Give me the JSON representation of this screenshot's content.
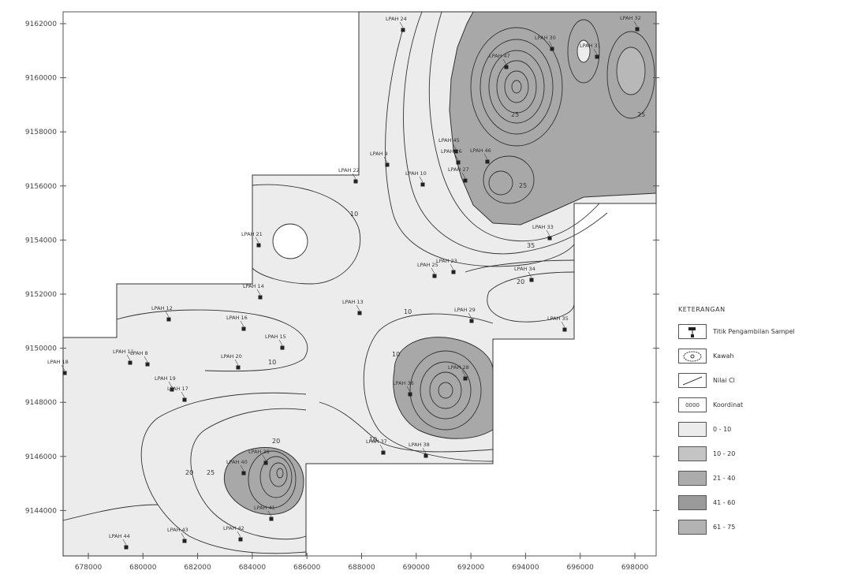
{
  "y_axis_labels": [
    "9162000",
    "9160000",
    "9158000",
    "9156000",
    "9154000",
    "9152000",
    "9150000",
    "9148000",
    "9146000",
    "9144000"
  ],
  "x_axis_labels": [
    "678000",
    "680000",
    "682000",
    "684000",
    "686000",
    "688000",
    "690000",
    "692000",
    "694000",
    "696000",
    "698000"
  ],
  "contour_labels": [
    "10",
    "25",
    "25",
    "10",
    "25",
    "20",
    "10",
    "10",
    "20",
    "35",
    "25",
    "10",
    "20"
  ],
  "sample_points": [
    "LPAH 18",
    "LPAH 11",
    "LPAH 8",
    "LPAH 19",
    "LPAH 17",
    "LPAH 12",
    "LPAH 20",
    "LPAH 16",
    "LPAH 15",
    "LPAH 14",
    "LPAH 13",
    "LPAH 21",
    "LPAH 22",
    "LPAH 9",
    "LPAH 24",
    "LPAH 10",
    "LPAH 25",
    "LPAH 23",
    "LPAH 26",
    "LPAH 27",
    "LPAH 28",
    "LPAH 29",
    "LPAH 30",
    "LPAH 31",
    "LPAH 32",
    "LPAH 33",
    "LPAH 34",
    "LPAH 35",
    "LPAH 36",
    "LPAH 37",
    "LPAH 38",
    "LPAH 39",
    "LPAH 40",
    "LPAH 41",
    "LPAH 42",
    "LPAH 43",
    "LPAH 44",
    "LPAH 45",
    "LPAH 46",
    "LPAH 47"
  ],
  "legend": {
    "title": "KETERANGAN",
    "items": [
      {
        "label": "Titik Pengambilan Sampel",
        "symbol": "sample-point"
      },
      {
        "label": "Kawah",
        "symbol": "crater"
      },
      {
        "label": "Nilai Cl",
        "symbol": "contour-line"
      },
      {
        "label": "Koordinat",
        "symbol": "coordinate",
        "symbol_text": "0000"
      },
      {
        "label": "0 - 10",
        "symbol": "fill",
        "color": "#ececec"
      },
      {
        "label": "10 - 20",
        "symbol": "fill",
        "color": "#c4c4c4"
      },
      {
        "label": "21 - 40",
        "symbol": "fill",
        "color": "#acacac"
      },
      {
        "label": "41 - 60",
        "symbol": "fill",
        "color": "#9a9a9a"
      },
      {
        "label": "61 - 75",
        "symbol": "fill",
        "color": "#b3b3b3"
      }
    ]
  },
  "colors": {
    "low": "#ececec",
    "high": "#a8a8a8",
    "line": "#333333"
  }
}
